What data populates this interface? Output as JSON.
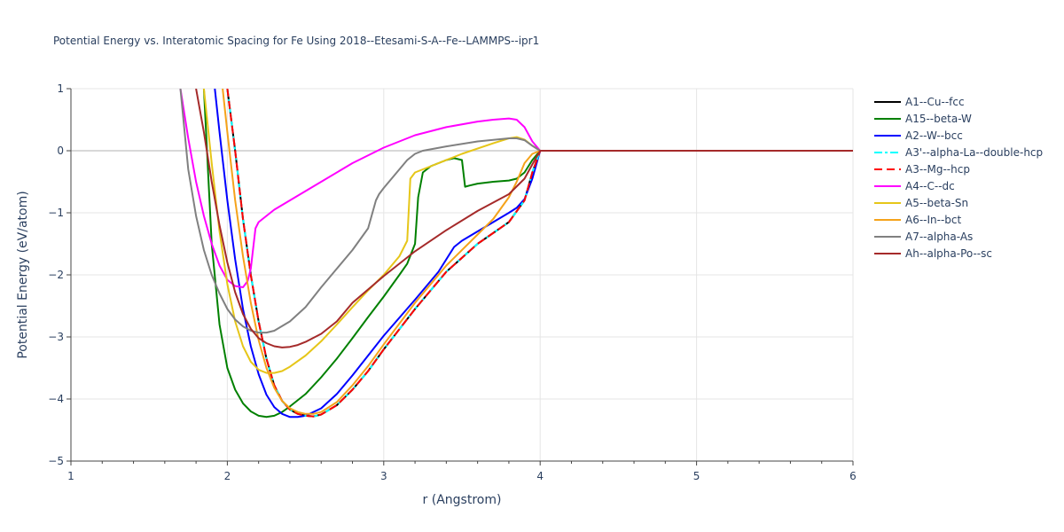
{
  "chart_data": {
    "type": "line",
    "title": "Potential Energy vs. Interatomic Spacing for Fe Using 2018--Etesami-S-A--Fe--LAMMPS--ipr1",
    "xlabel": "r (Angstrom)",
    "ylabel": "Potential Energy (eV/atom)",
    "xlim": [
      1,
      6
    ],
    "ylim": [
      -5,
      1
    ],
    "xticks": [
      1,
      2,
      3,
      4,
      5,
      6
    ],
    "yticks": [
      1,
      0,
      -1,
      -2,
      -3,
      -4,
      -5
    ],
    "ytick_labels": [
      "1",
      "0",
      "−1",
      "−2",
      "−3",
      "−4",
      "−5"
    ],
    "grid": true,
    "legend_position": "right",
    "series": [
      {
        "name": "A1--Cu--fcc",
        "color": "#000000",
        "dash": "solid",
        "x": [
          2.0,
          2.05,
          2.1,
          2.15,
          2.2,
          2.25,
          2.3,
          2.35,
          2.4,
          2.45,
          2.5,
          2.55,
          2.6,
          2.7,
          2.8,
          2.9,
          3.0,
          3.2,
          3.4,
          3.6,
          3.8,
          3.9,
          3.95,
          4.0,
          4.5,
          5.0,
          5.5,
          6.0
        ],
        "y": [
          1.0,
          0.0,
          -1.1,
          -2.0,
          -2.75,
          -3.35,
          -3.78,
          -4.03,
          -4.17,
          -4.24,
          -4.27,
          -4.28,
          -4.25,
          -4.1,
          -3.85,
          -3.55,
          -3.2,
          -2.55,
          -1.95,
          -1.5,
          -1.15,
          -0.8,
          -0.35,
          0.0,
          0.0,
          0.0,
          0.0,
          0.0
        ]
      },
      {
        "name": "A15--beta-W",
        "color": "#008000",
        "dash": "solid",
        "x": [
          1.85,
          1.9,
          1.95,
          2.0,
          2.05,
          2.1,
          2.15,
          2.2,
          2.25,
          2.3,
          2.35,
          2.4,
          2.5,
          2.6,
          2.7,
          2.8,
          2.9,
          3.0,
          3.1,
          3.15,
          3.2,
          3.22,
          3.25,
          3.3,
          3.4,
          3.45,
          3.5,
          3.52,
          3.55,
          3.6,
          3.7,
          3.8,
          3.85,
          3.9,
          3.95,
          4.0,
          4.5,
          5.0,
          5.5,
          6.0
        ],
        "y": [
          1.0,
          -1.5,
          -2.8,
          -3.5,
          -3.85,
          -4.07,
          -4.2,
          -4.27,
          -4.29,
          -4.27,
          -4.21,
          -4.12,
          -3.92,
          -3.65,
          -3.35,
          -3.02,
          -2.68,
          -2.35,
          -2.0,
          -1.82,
          -1.5,
          -0.75,
          -0.35,
          -0.25,
          -0.15,
          -0.12,
          -0.15,
          -0.58,
          -0.56,
          -0.53,
          -0.5,
          -0.48,
          -0.45,
          -0.35,
          -0.15,
          0.0,
          0.0,
          0.0,
          0.0,
          0.0
        ]
      },
      {
        "name": "A2--W--bcc",
        "color": "#0000ff",
        "dash": "solid",
        "x": [
          1.92,
          1.95,
          2.0,
          2.05,
          2.1,
          2.15,
          2.2,
          2.25,
          2.3,
          2.35,
          2.4,
          2.45,
          2.5,
          2.6,
          2.7,
          2.8,
          2.9,
          3.0,
          3.2,
          3.35,
          3.45,
          3.5,
          3.6,
          3.7,
          3.8,
          3.85,
          3.9,
          3.95,
          4.0,
          4.5,
          5.0,
          5.5,
          6.0
        ],
        "y": [
          1.0,
          0.3,
          -0.8,
          -1.75,
          -2.55,
          -3.15,
          -3.6,
          -3.93,
          -4.13,
          -4.24,
          -4.29,
          -4.29,
          -4.27,
          -4.15,
          -3.92,
          -3.62,
          -3.3,
          -2.98,
          -2.4,
          -1.95,
          -1.55,
          -1.45,
          -1.3,
          -1.15,
          -1.0,
          -0.92,
          -0.78,
          -0.45,
          0.0,
          0.0,
          0.0,
          0.0,
          0.0
        ]
      },
      {
        "name": "A3'--alpha-La--double-hcp",
        "color": "#00ffff",
        "dash": "dashdot",
        "x": [
          2.0,
          2.05,
          2.1,
          2.15,
          2.2,
          2.25,
          2.3,
          2.35,
          2.4,
          2.45,
          2.5,
          2.55,
          2.6,
          2.7,
          2.8,
          2.9,
          3.0,
          3.2,
          3.4,
          3.6,
          3.8,
          3.9,
          3.95,
          4.0,
          4.5,
          5.0,
          5.5,
          6.0
        ],
        "y": [
          1.0,
          0.0,
          -1.1,
          -2.0,
          -2.75,
          -3.35,
          -3.78,
          -4.03,
          -4.17,
          -4.24,
          -4.27,
          -4.28,
          -4.25,
          -4.1,
          -3.85,
          -3.55,
          -3.2,
          -2.55,
          -1.95,
          -1.5,
          -1.15,
          -0.8,
          -0.35,
          0.0,
          0.0,
          0.0,
          0.0,
          0.0
        ]
      },
      {
        "name": "A3--Mg--hcp",
        "color": "#ff0000",
        "dash": "dash",
        "x": [
          2.0,
          2.05,
          2.1,
          2.15,
          2.2,
          2.25,
          2.3,
          2.35,
          2.4,
          2.45,
          2.5,
          2.55,
          2.6,
          2.7,
          2.8,
          2.9,
          3.0,
          3.2,
          3.4,
          3.6,
          3.8,
          3.9,
          3.95,
          4.0,
          4.5,
          5.0,
          5.5,
          6.0
        ],
        "y": [
          1.0,
          0.0,
          -1.1,
          -2.0,
          -2.75,
          -3.35,
          -3.78,
          -4.03,
          -4.17,
          -4.24,
          -4.27,
          -4.28,
          -4.25,
          -4.1,
          -3.85,
          -3.55,
          -3.2,
          -2.55,
          -1.95,
          -1.5,
          -1.15,
          -0.8,
          -0.35,
          0.0,
          0.0,
          0.0,
          0.0,
          0.0
        ]
      },
      {
        "name": "A4--C--dc",
        "color": "#ff00ff",
        "dash": "solid",
        "x": [
          1.7,
          1.75,
          1.8,
          1.85,
          1.9,
          1.95,
          2.0,
          2.05,
          2.1,
          2.13,
          2.15,
          2.18,
          2.2,
          2.3,
          2.4,
          2.6,
          2.8,
          3.0,
          3.2,
          3.4,
          3.6,
          3.7,
          3.8,
          3.85,
          3.9,
          3.95,
          4.0,
          4.5,
          5.0,
          5.5,
          6.0
        ],
        "y": [
          1.0,
          0.2,
          -0.5,
          -1.05,
          -1.5,
          -1.85,
          -2.08,
          -2.18,
          -2.2,
          -2.1,
          -1.9,
          -1.25,
          -1.15,
          -0.95,
          -0.8,
          -0.5,
          -0.2,
          0.05,
          0.25,
          0.38,
          0.47,
          0.5,
          0.52,
          0.5,
          0.38,
          0.15,
          0.0,
          0.0,
          0.0,
          0.0,
          0.0
        ]
      },
      {
        "name": "A5--beta-Sn",
        "color": "#e6c619",
        "dash": "solid",
        "x": [
          1.85,
          1.9,
          1.95,
          2.0,
          2.05,
          2.1,
          2.15,
          2.2,
          2.25,
          2.3,
          2.35,
          2.4,
          2.5,
          2.6,
          2.7,
          2.8,
          2.9,
          3.0,
          3.1,
          3.15,
          3.17,
          3.2,
          3.3,
          3.5,
          3.7,
          3.8,
          3.85,
          3.9,
          3.95,
          4.0,
          4.5,
          5.0,
          5.5,
          6.0
        ],
        "y": [
          1.0,
          -0.2,
          -1.3,
          -2.15,
          -2.75,
          -3.15,
          -3.4,
          -3.53,
          -3.58,
          -3.58,
          -3.55,
          -3.48,
          -3.3,
          -3.07,
          -2.8,
          -2.52,
          -2.25,
          -2.0,
          -1.7,
          -1.45,
          -0.45,
          -0.35,
          -0.25,
          -0.05,
          0.12,
          0.2,
          0.22,
          0.18,
          0.08,
          0.0,
          0.0,
          0.0,
          0.0,
          0.0
        ]
      },
      {
        "name": "A6--In--bct",
        "color": "#f5a31a",
        "dash": "solid",
        "x": [
          1.97,
          2.0,
          2.05,
          2.1,
          2.15,
          2.2,
          2.25,
          2.3,
          2.35,
          2.4,
          2.45,
          2.5,
          2.55,
          2.6,
          2.7,
          2.8,
          2.9,
          3.0,
          3.2,
          3.4,
          3.6,
          3.7,
          3.8,
          3.85,
          3.9,
          3.95,
          4.0,
          4.5,
          5.0,
          5.5,
          6.0
        ],
        "y": [
          1.0,
          0.3,
          -0.8,
          -1.7,
          -2.45,
          -3.05,
          -3.5,
          -3.82,
          -4.03,
          -4.15,
          -4.21,
          -4.24,
          -4.24,
          -4.21,
          -4.05,
          -3.78,
          -3.47,
          -3.12,
          -2.45,
          -1.85,
          -1.35,
          -1.1,
          -0.75,
          -0.5,
          -0.2,
          -0.05,
          0.0,
          0.0,
          0.0,
          0.0,
          0.0
        ]
      },
      {
        "name": "A7--alpha-As",
        "color": "#808080",
        "dash": "solid",
        "x": [
          1.7,
          1.75,
          1.8,
          1.85,
          1.9,
          1.95,
          2.0,
          2.05,
          2.1,
          2.15,
          2.2,
          2.25,
          2.3,
          2.4,
          2.5,
          2.6,
          2.7,
          2.8,
          2.9,
          2.95,
          2.97,
          3.0,
          3.05,
          3.1,
          3.15,
          3.2,
          3.25,
          3.4,
          3.6,
          3.8,
          3.85,
          3.9,
          3.95,
          4.0,
          4.5,
          5.0,
          5.5,
          6.0
        ],
        "y": [
          1.0,
          -0.3,
          -1.05,
          -1.6,
          -2.0,
          -2.3,
          -2.55,
          -2.72,
          -2.83,
          -2.9,
          -2.93,
          -2.93,
          -2.9,
          -2.75,
          -2.52,
          -2.2,
          -1.9,
          -1.6,
          -1.25,
          -0.8,
          -0.7,
          -0.6,
          -0.45,
          -0.3,
          -0.15,
          -0.05,
          0.0,
          0.07,
          0.15,
          0.2,
          0.2,
          0.17,
          0.08,
          0.0,
          0.0,
          0.0,
          0.0,
          0.0
        ]
      },
      {
        "name": "Ah--alpha-Po--sc",
        "color": "#a52a2a",
        "dash": "solid",
        "x": [
          1.8,
          1.85,
          1.9,
          1.95,
          2.0,
          2.05,
          2.1,
          2.15,
          2.2,
          2.25,
          2.3,
          2.35,
          2.4,
          2.45,
          2.5,
          2.6,
          2.7,
          2.8,
          3.0,
          3.2,
          3.4,
          3.6,
          3.8,
          3.9,
          3.95,
          4.0,
          4.5,
          5.0,
          5.5,
          6.0
        ],
        "y": [
          1.0,
          0.3,
          -0.5,
          -1.2,
          -1.8,
          -2.28,
          -2.63,
          -2.87,
          -3.02,
          -3.1,
          -3.15,
          -3.17,
          -3.16,
          -3.13,
          -3.08,
          -2.95,
          -2.75,
          -2.45,
          -2.02,
          -1.62,
          -1.28,
          -0.97,
          -0.7,
          -0.45,
          -0.22,
          0.0,
          0.0,
          0.0,
          0.0,
          0.0
        ]
      }
    ]
  }
}
